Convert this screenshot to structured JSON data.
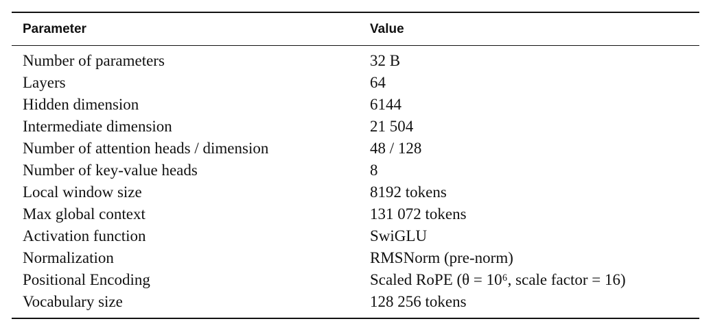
{
  "table": {
    "headers": {
      "parameter": "Parameter",
      "value": "Value"
    },
    "rows": [
      {
        "parameter": "Number of parameters",
        "value": "32 B"
      },
      {
        "parameter": "Layers",
        "value": "64"
      },
      {
        "parameter": "Hidden dimension",
        "value": "6144"
      },
      {
        "parameter": "Intermediate dimension",
        "value": "21 504"
      },
      {
        "parameter": "Number of attention heads / dimension",
        "value": "48 / 128"
      },
      {
        "parameter": "Number of key-value heads",
        "value": "8"
      },
      {
        "parameter": "Local window size",
        "value": "8192 tokens"
      },
      {
        "parameter": "Max global context",
        "value": "131 072 tokens"
      },
      {
        "parameter": "Activation function",
        "value": "SwiGLU"
      },
      {
        "parameter": "Normalization",
        "value": "RMSNorm (pre-norm)"
      },
      {
        "parameter": "Positional Encoding",
        "value": "Scaled RoPE (θ = 10⁶, scale factor = 16)"
      },
      {
        "parameter": "Vocabulary size",
        "value": "128 256 tokens"
      }
    ]
  }
}
